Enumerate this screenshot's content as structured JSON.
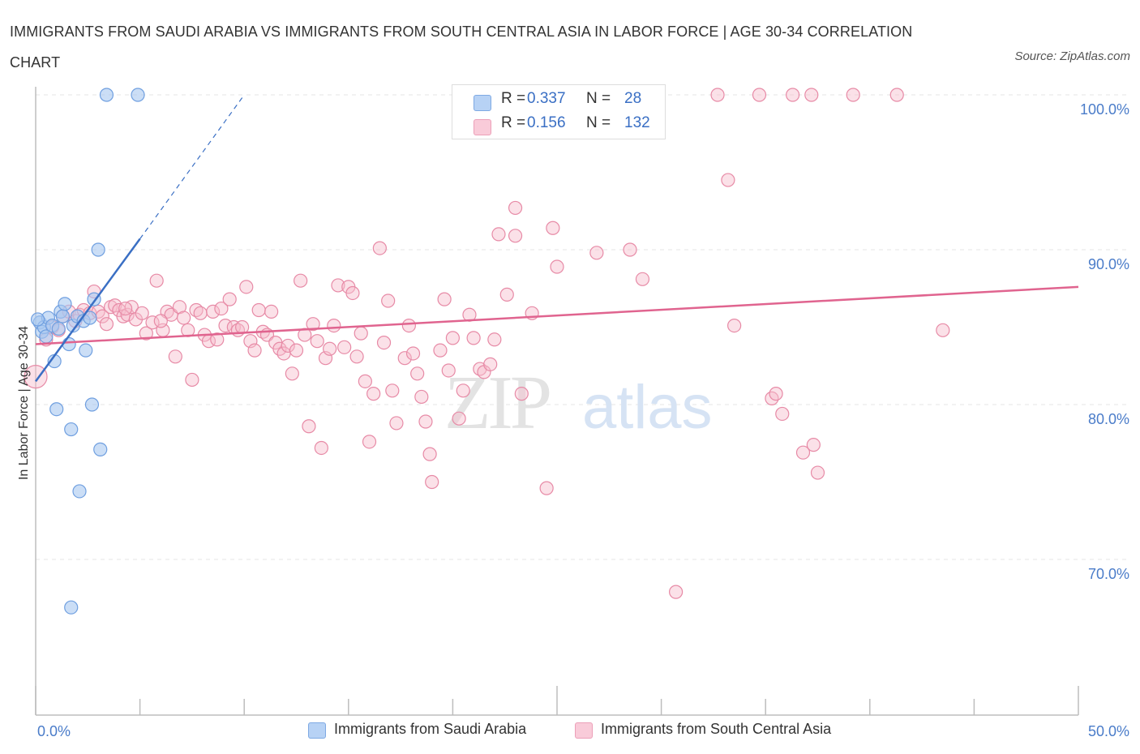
{
  "title": "IMMIGRANTS FROM SAUDI ARABIA VS IMMIGRANTS FROM SOUTH CENTRAL ASIA IN LABOR FORCE | AGE 30-34 CORRELATION CHART",
  "source": "Source: ZipAtlas.com",
  "watermark": {
    "zip": "ZIP",
    "atlas": "atlas"
  },
  "legend_top": [
    {
      "r_label": "R =",
      "r_value": "0.337",
      "n_label": "N =",
      "n_value": "28",
      "color": "#a9c8f0"
    },
    {
      "r_label": "R =",
      "r_value": "0.156",
      "n_label": "N =",
      "n_value": "132",
      "color": "#f6bccd"
    }
  ],
  "legend_bottom": [
    {
      "label": "Immigrants from Saudi Arabia",
      "color": "#a9c8f0"
    },
    {
      "label": "Immigrants from South Central Asia",
      "color": "#f6bccd"
    }
  ],
  "chart_data": {
    "type": "scatter",
    "title": "IMMIGRANTS FROM SAUDI ARABIA VS IMMIGRANTS FROM SOUTH CENTRAL ASIA IN LABOR FORCE | AGE 30-34 CORRELATION CHART",
    "xlabel": "",
    "ylabel": "In Labor Force | Age 30-34",
    "xlim": [
      0,
      50
    ],
    "ylim": [
      62,
      102
    ],
    "x_tick_labels": [
      {
        "value": 0,
        "label": "0.0%"
      },
      {
        "value": 50,
        "label": "50.0%"
      }
    ],
    "y_tick_labels": [
      {
        "value": 70,
        "label": "70.0%"
      },
      {
        "value": 80,
        "label": "80.0%"
      },
      {
        "value": 90,
        "label": "90.0%"
      },
      {
        "value": 100,
        "label": "100.0%"
      }
    ],
    "grid": true,
    "series": [
      {
        "name": "Immigrants from Saudi Arabia",
        "color": "#6f9fe0",
        "fill": "#a9c8f0",
        "trend": {
          "x0": 0.0,
          "y0": 81.5,
          "x1": 5.0,
          "y1": 90.7,
          "dash_to_x": 10.0,
          "dash_to_y": 100.0,
          "color": "#3a6fc4"
        },
        "points": [
          [
            0.2,
            85.3
          ],
          [
            0.3,
            84.7
          ],
          [
            0.4,
            85.0
          ],
          [
            0.5,
            84.4
          ],
          [
            0.6,
            85.6
          ],
          [
            0.8,
            85.1
          ],
          [
            0.9,
            82.8
          ],
          [
            1.0,
            79.7
          ],
          [
            1.1,
            84.9
          ],
          [
            1.2,
            86.0
          ],
          [
            1.3,
            85.7
          ],
          [
            1.4,
            86.5
          ],
          [
            1.6,
            83.9
          ],
          [
            1.7,
            78.4
          ],
          [
            1.8,
            85.1
          ],
          [
            2.0,
            85.7
          ],
          [
            2.1,
            74.4
          ],
          [
            2.3,
            85.4
          ],
          [
            2.4,
            83.5
          ],
          [
            2.6,
            85.6
          ],
          [
            2.7,
            80.0
          ],
          [
            2.8,
            86.8
          ],
          [
            3.0,
            90.0
          ],
          [
            3.1,
            77.1
          ],
          [
            3.4,
            100.0
          ],
          [
            4.9,
            100.0
          ],
          [
            1.7,
            66.9
          ],
          [
            0.1,
            85.5
          ]
        ]
      },
      {
        "name": "Immigrants from South Central Asia",
        "color": "#e78aa6",
        "fill": "#f6bccd",
        "trend": {
          "x0": 0.0,
          "y0": 83.9,
          "x1": 50.0,
          "y1": 87.6,
          "color": "#e0648f"
        },
        "points": [
          [
            0.0,
            81.8
          ],
          [
            0.5,
            84.2
          ],
          [
            0.8,
            85.0
          ],
          [
            1.1,
            84.8
          ],
          [
            1.3,
            85.7
          ],
          [
            1.6,
            86.0
          ],
          [
            1.9,
            85.4
          ],
          [
            2.1,
            85.8
          ],
          [
            2.3,
            86.1
          ],
          [
            2.6,
            85.9
          ],
          [
            2.8,
            87.3
          ],
          [
            3.0,
            86.0
          ],
          [
            3.2,
            85.7
          ],
          [
            3.4,
            85.2
          ],
          [
            3.6,
            86.3
          ],
          [
            3.8,
            86.4
          ],
          [
            4.0,
            86.1
          ],
          [
            4.2,
            85.7
          ],
          [
            4.4,
            85.8
          ],
          [
            4.6,
            86.3
          ],
          [
            4.8,
            85.5
          ],
          [
            5.1,
            85.9
          ],
          [
            5.3,
            84.6
          ],
          [
            5.6,
            85.3
          ],
          [
            5.8,
            88.0
          ],
          [
            6.1,
            84.8
          ],
          [
            6.3,
            86.0
          ],
          [
            6.5,
            85.8
          ],
          [
            6.7,
            83.1
          ],
          [
            6.9,
            86.3
          ],
          [
            7.1,
            85.6
          ],
          [
            7.3,
            84.8
          ],
          [
            7.5,
            81.6
          ],
          [
            7.7,
            86.1
          ],
          [
            7.9,
            85.9
          ],
          [
            8.1,
            84.5
          ],
          [
            8.3,
            84.1
          ],
          [
            8.5,
            86.0
          ],
          [
            8.7,
            84.2
          ],
          [
            8.9,
            86.2
          ],
          [
            9.1,
            85.1
          ],
          [
            9.3,
            86.8
          ],
          [
            9.5,
            85.0
          ],
          [
            9.7,
            84.8
          ],
          [
            9.9,
            85.0
          ],
          [
            10.1,
            87.6
          ],
          [
            10.3,
            84.1
          ],
          [
            10.5,
            83.5
          ],
          [
            10.7,
            86.1
          ],
          [
            10.9,
            84.7
          ],
          [
            11.1,
            84.5
          ],
          [
            11.3,
            86.0
          ],
          [
            11.5,
            84.0
          ],
          [
            11.7,
            83.6
          ],
          [
            11.9,
            83.3
          ],
          [
            12.1,
            83.8
          ],
          [
            12.3,
            82.0
          ],
          [
            12.5,
            83.5
          ],
          [
            12.7,
            88.0
          ],
          [
            12.9,
            84.5
          ],
          [
            13.1,
            78.6
          ],
          [
            13.3,
            85.2
          ],
          [
            13.5,
            84.1
          ],
          [
            13.7,
            77.2
          ],
          [
            13.9,
            83.0
          ],
          [
            14.1,
            83.6
          ],
          [
            14.3,
            85.1
          ],
          [
            14.5,
            87.7
          ],
          [
            14.8,
            83.7
          ],
          [
            15.0,
            87.6
          ],
          [
            15.2,
            87.2
          ],
          [
            15.4,
            83.1
          ],
          [
            15.6,
            84.6
          ],
          [
            15.8,
            81.5
          ],
          [
            16.0,
            77.6
          ],
          [
            16.2,
            80.7
          ],
          [
            16.5,
            90.1
          ],
          [
            16.7,
            84.0
          ],
          [
            16.9,
            86.7
          ],
          [
            17.1,
            80.9
          ],
          [
            17.3,
            78.8
          ],
          [
            17.7,
            83.0
          ],
          [
            17.9,
            85.1
          ],
          [
            18.1,
            83.3
          ],
          [
            18.3,
            82.0
          ],
          [
            18.5,
            80.5
          ],
          [
            18.7,
            78.9
          ],
          [
            18.9,
            76.8
          ],
          [
            19.0,
            75.0
          ],
          [
            19.4,
            83.5
          ],
          [
            19.6,
            86.8
          ],
          [
            19.8,
            82.2
          ],
          [
            20.0,
            84.3
          ],
          [
            20.3,
            79.1
          ],
          [
            20.5,
            80.9
          ],
          [
            20.8,
            85.8
          ],
          [
            21.0,
            84.3
          ],
          [
            21.3,
            82.3
          ],
          [
            21.5,
            82.1
          ],
          [
            21.8,
            82.6
          ],
          [
            22.0,
            84.2
          ],
          [
            22.2,
            91.0
          ],
          [
            22.6,
            87.1
          ],
          [
            23.0,
            92.7
          ],
          [
            23.0,
            90.9
          ],
          [
            23.3,
            80.7
          ],
          [
            23.8,
            85.9
          ],
          [
            24.5,
            74.6
          ],
          [
            24.8,
            91.4
          ],
          [
            25.0,
            88.9
          ],
          [
            26.9,
            89.8
          ],
          [
            28.5,
            90.0
          ],
          [
            28.7,
            98.0
          ],
          [
            29.1,
            88.1
          ],
          [
            30.7,
            67.9
          ],
          [
            32.7,
            100.0
          ],
          [
            33.2,
            94.5
          ],
          [
            33.5,
            85.1
          ],
          [
            34.7,
            100.0
          ],
          [
            35.3,
            80.4
          ],
          [
            35.5,
            80.7
          ],
          [
            35.8,
            79.4
          ],
          [
            36.3,
            100.0
          ],
          [
            37.2,
            100.0
          ],
          [
            36.8,
            76.9
          ],
          [
            37.3,
            77.4
          ],
          [
            37.5,
            75.6
          ],
          [
            39.2,
            100.0
          ],
          [
            41.3,
            100.0
          ],
          [
            43.5,
            84.8
          ],
          [
            4.3,
            86.2
          ],
          [
            6.0,
            85.4
          ]
        ]
      }
    ]
  }
}
